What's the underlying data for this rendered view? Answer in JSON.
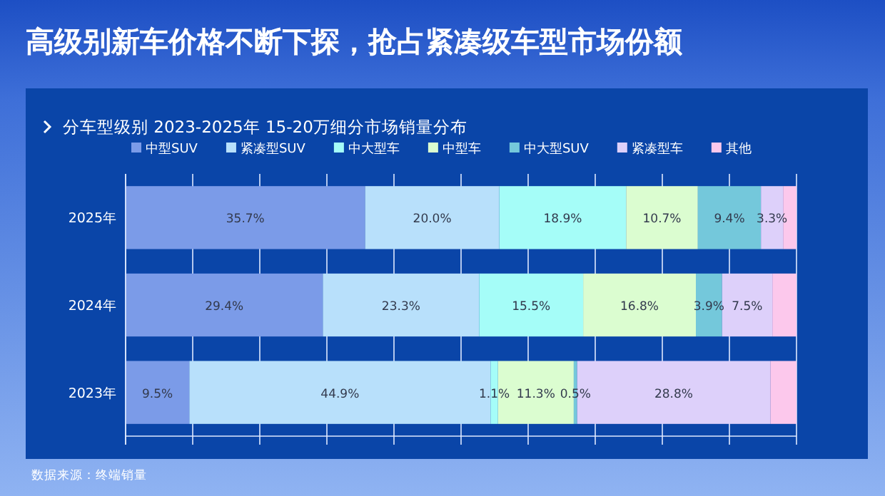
{
  "chart_data": {
    "type": "bar",
    "orientation": "horizontal",
    "stacked": true,
    "title": "高级别新车价格不断下探，抢占紧凑级车型市场份额",
    "subtitle": "分车型级别 2023-2025年 15-20万细分市场销量分布",
    "annotations": [
      "数据来源：终端销量"
    ],
    "categories": [
      "2025年",
      "2024年",
      "2023年"
    ],
    "xlim": [
      0,
      100
    ],
    "xticks": [
      {
        "value": 0,
        "label": null
      },
      {
        "value": 10,
        "label": null
      },
      {
        "value": 20,
        "label": null
      },
      {
        "value": 30,
        "label": null
      },
      {
        "value": 40,
        "label": null
      },
      {
        "value": 50,
        "label": null
      },
      {
        "value": 60,
        "label": null
      },
      {
        "value": 70,
        "label": null
      },
      {
        "value": 80,
        "label": null
      },
      {
        "value": 90,
        "label": null
      },
      {
        "value": 100,
        "label": null
      }
    ],
    "tick_labels": "y",
    "grid": "x",
    "legend": "top left",
    "series": [
      {
        "name": "中型SUV",
        "color": "#7b9be8",
        "values": [
          35.7,
          29.4,
          9.5
        ],
        "value_labels": [
          "35.7%",
          "29.4%",
          "9.5%"
        ]
      },
      {
        "name": "紧凑型SUV",
        "color": "#b8e0fb",
        "values": [
          20.0,
          23.3,
          44.9
        ],
        "value_labels": [
          "20.0%",
          "23.3%",
          "44.9%"
        ]
      },
      {
        "name": "中大型车",
        "color": "#a5fdf8",
        "values": [
          18.9,
          15.5,
          1.1
        ],
        "value_labels": [
          "18.9%",
          "15.5%",
          "1.1%"
        ]
      },
      {
        "name": "中型车",
        "color": "#dbfdd0",
        "values": [
          10.7,
          16.8,
          11.3
        ],
        "value_labels": [
          "10.7%",
          "16.8%",
          "11.3%"
        ]
      },
      {
        "name": "中大型SUV",
        "color": "#74c8db",
        "values": [
          9.4,
          3.9,
          0.5
        ],
        "value_labels": [
          "9.4%",
          "3.9%",
          "0.5%"
        ]
      },
      {
        "name": "紧凑型车",
        "color": "#ddd0fa",
        "values": [
          3.3,
          7.5,
          28.8
        ],
        "value_labels": [
          "3.3%",
          "7.5%",
          "28.8%"
        ]
      },
      {
        "name": "其他",
        "color": "#fcc8ec",
        "values": [
          2.0,
          3.6,
          3.9
        ],
        "value_labels": [
          null,
          null,
          null
        ]
      }
    ]
  }
}
